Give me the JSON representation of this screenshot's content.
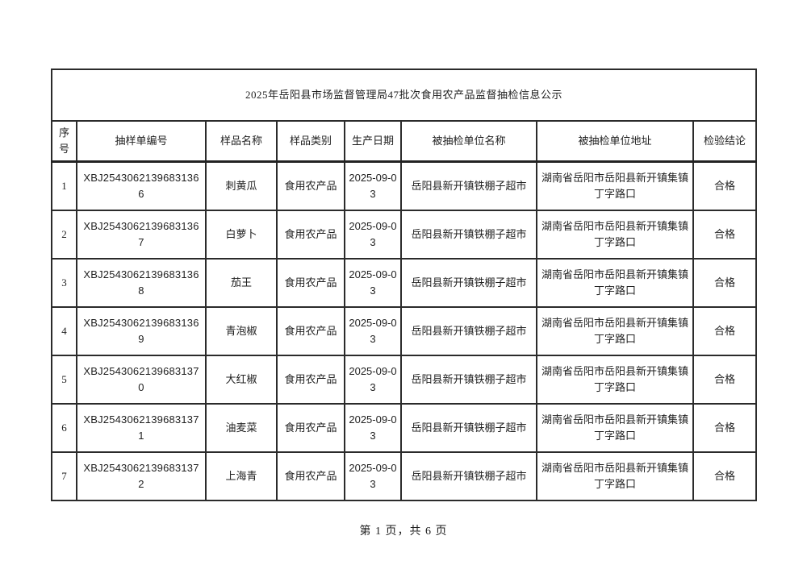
{
  "page": {
    "title": "2025年岳阳县市场监督管理局47批次食用农产品监督抽检信息公示",
    "footer": "第 1 页，共 6 页"
  },
  "table": {
    "headers": [
      "序号",
      "抽样单编号",
      "样品名称",
      "样品类别",
      "生产日期",
      "被抽检单位名称",
      "被抽检单位地址",
      "检验结论"
    ],
    "rows": [
      {
        "no": "1",
        "sample_id": "XBJ25430621396831366",
        "name": "刺黄瓜",
        "category": "食用农产品",
        "date": "2025-09-03",
        "unit_name": "岳阳县新开镇铁棚子超市",
        "unit_address": "湖南省岳阳市岳阳县新开镇集镇丁字路口",
        "result": "合格"
      },
      {
        "no": "2",
        "sample_id": "XBJ25430621396831367",
        "name": "白萝卜",
        "category": "食用农产品",
        "date": "2025-09-03",
        "unit_name": "岳阳县新开镇铁棚子超市",
        "unit_address": "湖南省岳阳市岳阳县新开镇集镇丁字路口",
        "result": "合格"
      },
      {
        "no": "3",
        "sample_id": "XBJ25430621396831368",
        "name": "茄王",
        "category": "食用农产品",
        "date": "2025-09-03",
        "unit_name": "岳阳县新开镇铁棚子超市",
        "unit_address": "湖南省岳阳市岳阳县新开镇集镇丁字路口",
        "result": "合格"
      },
      {
        "no": "4",
        "sample_id": "XBJ25430621396831369",
        "name": "青泡椒",
        "category": "食用农产品",
        "date": "2025-09-03",
        "unit_name": "岳阳县新开镇铁棚子超市",
        "unit_address": "湖南省岳阳市岳阳县新开镇集镇丁字路口",
        "result": "合格"
      },
      {
        "no": "5",
        "sample_id": "XBJ25430621396831370",
        "name": "大红椒",
        "category": "食用农产品",
        "date": "2025-09-03",
        "unit_name": "岳阳县新开镇铁棚子超市",
        "unit_address": "湖南省岳阳市岳阳县新开镇集镇丁字路口",
        "result": "合格"
      },
      {
        "no": "6",
        "sample_id": "XBJ25430621396831371",
        "name": "油麦菜",
        "category": "食用农产品",
        "date": "2025-09-03",
        "unit_name": "岳阳县新开镇铁棚子超市",
        "unit_address": "湖南省岳阳市岳阳县新开镇集镇丁字路口",
        "result": "合格"
      },
      {
        "no": "7",
        "sample_id": "XBJ25430621396831372",
        "name": "上海青",
        "category": "食用农产品",
        "date": "2025-09-03",
        "unit_name": "岳阳县新开镇铁棚子超市",
        "unit_address": "湖南省岳阳市岳阳县新开镇集镇丁字路口",
        "result": "合格"
      }
    ]
  }
}
